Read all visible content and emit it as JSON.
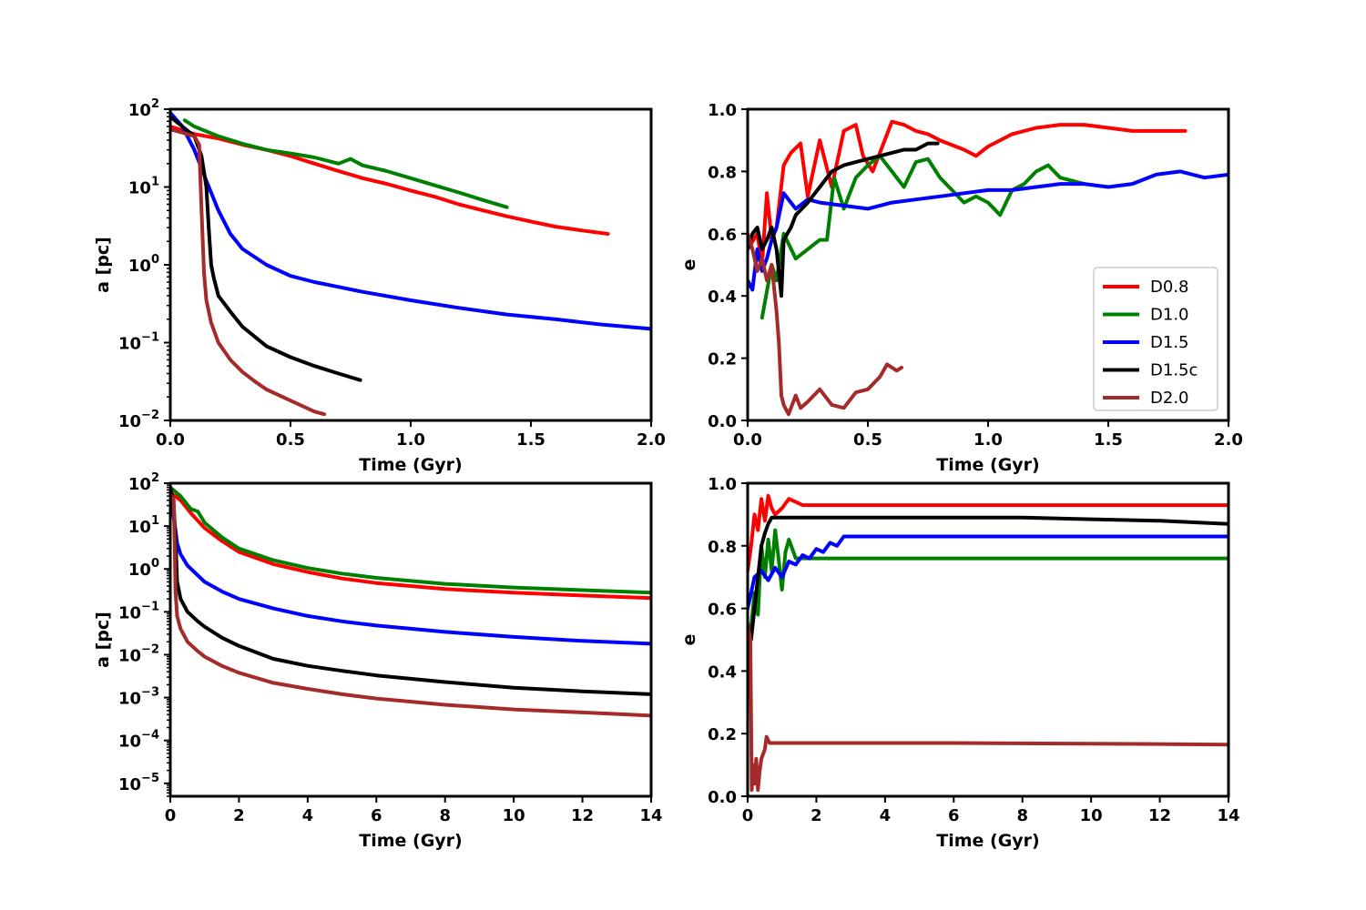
{
  "chart_data": [
    {
      "type": "line",
      "panel": "top-left",
      "xlabel": "Time (Gyr)",
      "ylabel": "a [pc]",
      "xlim": [
        0,
        2.0
      ],
      "ylim": [
        0.01,
        100
      ],
      "yscale": "log",
      "xticks": [
        "0.0",
        "0.5",
        "1.0",
        "1.5",
        "2.0"
      ],
      "yticks": [
        {
          "base": "10",
          "exp": "2"
        },
        {
          "base": "10",
          "exp": "1"
        },
        {
          "base": "10",
          "exp": "0"
        },
        {
          "base": "10",
          "exp": "−1"
        },
        {
          "base": "10",
          "exp": "−2"
        }
      ],
      "grid": false,
      "series": [
        {
          "name": "D0.8",
          "color": "#ff0000",
          "x": [
            0,
            0.1,
            0.2,
            0.3,
            0.4,
            0.5,
            0.6,
            0.7,
            0.8,
            0.9,
            1.0,
            1.1,
            1.2,
            1.3,
            1.4,
            1.5,
            1.6,
            1.7,
            1.82
          ],
          "y": [
            60,
            48,
            42,
            35,
            30,
            25,
            20,
            16,
            13,
            11,
            9,
            7.5,
            6,
            5,
            4.2,
            3.6,
            3.1,
            2.8,
            2.5
          ]
        },
        {
          "name": "D1.0",
          "color": "#008000",
          "x": [
            0.06,
            0.1,
            0.2,
            0.3,
            0.4,
            0.5,
            0.6,
            0.7,
            0.75,
            0.8,
            0.9,
            1.0,
            1.1,
            1.2,
            1.3,
            1.4
          ],
          "y": [
            72,
            60,
            45,
            36,
            30,
            27,
            24,
            20,
            23,
            19,
            16,
            13,
            10.5,
            8.5,
            6.8,
            5.5
          ]
        },
        {
          "name": "D1.5",
          "color": "#0000ff",
          "x": [
            0,
            0.05,
            0.1,
            0.15,
            0.2,
            0.25,
            0.3,
            0.4,
            0.5,
            0.6,
            0.7,
            0.8,
            1.0,
            1.2,
            1.4,
            1.6,
            1.8,
            2.0
          ],
          "y": [
            90,
            60,
            30,
            12,
            5,
            2.5,
            1.6,
            1.0,
            0.72,
            0.6,
            0.52,
            0.45,
            0.35,
            0.28,
            0.23,
            0.2,
            0.17,
            0.15
          ]
        },
        {
          "name": "D1.5c",
          "color": "#000000",
          "x": [
            0,
            0.05,
            0.1,
            0.13,
            0.15,
            0.16,
            0.17,
            0.18,
            0.2,
            0.25,
            0.3,
            0.35,
            0.4,
            0.5,
            0.6,
            0.7,
            0.79
          ],
          "y": [
            80,
            60,
            45,
            25,
            10,
            3,
            1,
            0.7,
            0.4,
            0.25,
            0.16,
            0.12,
            0.09,
            0.065,
            0.05,
            0.04,
            0.033
          ]
        },
        {
          "name": "D2.0",
          "color": "#a52a2a",
          "x": [
            0,
            0.05,
            0.1,
            0.12,
            0.13,
            0.14,
            0.15,
            0.17,
            0.2,
            0.25,
            0.3,
            0.35,
            0.4,
            0.5,
            0.6,
            0.64
          ],
          "y": [
            55,
            50,
            45,
            35,
            5,
            0.8,
            0.35,
            0.18,
            0.1,
            0.06,
            0.042,
            0.032,
            0.025,
            0.018,
            0.013,
            0.012
          ]
        }
      ]
    },
    {
      "type": "line",
      "panel": "top-right",
      "xlabel": "Time (Gyr)",
      "ylabel": "e",
      "xlim": [
        0,
        2.0
      ],
      "ylim": [
        0,
        1.0
      ],
      "xticks": [
        "0.0",
        "0.5",
        "1.0",
        "1.5",
        "2.0"
      ],
      "yticks": [
        "0.0",
        "0.2",
        "0.4",
        "0.6",
        "0.8",
        "1.0"
      ],
      "grid": false,
      "legend": {
        "position": "lower-right",
        "entries": [
          "D0.8",
          "D1.0",
          "D1.5",
          "D1.5c",
          "D2.0"
        ]
      },
      "series": [
        {
          "name": "D0.8",
          "color": "#ff0000",
          "x": [
            0,
            0.04,
            0.06,
            0.08,
            0.1,
            0.12,
            0.15,
            0.18,
            0.22,
            0.25,
            0.3,
            0.35,
            0.4,
            0.45,
            0.48,
            0.52,
            0.6,
            0.65,
            0.7,
            0.75,
            0.8,
            0.9,
            0.95,
            1.0,
            1.1,
            1.2,
            1.3,
            1.4,
            1.5,
            1.6,
            1.7,
            1.82
          ],
          "y": [
            0.55,
            0.6,
            0.5,
            0.73,
            0.58,
            0.62,
            0.82,
            0.86,
            0.89,
            0.72,
            0.9,
            0.75,
            0.93,
            0.95,
            0.85,
            0.8,
            0.96,
            0.95,
            0.93,
            0.92,
            0.9,
            0.87,
            0.85,
            0.88,
            0.92,
            0.94,
            0.95,
            0.95,
            0.94,
            0.93,
            0.93,
            0.93
          ]
        },
        {
          "name": "D1.0",
          "color": "#008000",
          "x": [
            0.06,
            0.1,
            0.12,
            0.15,
            0.2,
            0.25,
            0.3,
            0.33,
            0.36,
            0.4,
            0.45,
            0.5,
            0.55,
            0.6,
            0.65,
            0.7,
            0.75,
            0.8,
            0.85,
            0.9,
            0.95,
            1.0,
            1.05,
            1.1,
            1.15,
            1.2,
            1.25,
            1.3,
            1.35,
            1.4
          ],
          "y": [
            0.33,
            0.5,
            0.45,
            0.6,
            0.52,
            0.55,
            0.58,
            0.58,
            0.78,
            0.68,
            0.78,
            0.82,
            0.85,
            0.8,
            0.75,
            0.83,
            0.84,
            0.78,
            0.74,
            0.7,
            0.72,
            0.7,
            0.66,
            0.74,
            0.76,
            0.8,
            0.82,
            0.78,
            0.77,
            0.76
          ]
        },
        {
          "name": "D1.5",
          "color": "#0000ff",
          "x": [
            0,
            0.02,
            0.04,
            0.06,
            0.08,
            0.1,
            0.12,
            0.15,
            0.18,
            0.2,
            0.25,
            0.3,
            0.4,
            0.5,
            0.6,
            0.7,
            0.8,
            0.9,
            1.0,
            1.1,
            1.2,
            1.3,
            1.4,
            1.5,
            1.6,
            1.7,
            1.8,
            1.9,
            2.0
          ],
          "y": [
            0.45,
            0.42,
            0.55,
            0.48,
            0.52,
            0.58,
            0.62,
            0.73,
            0.7,
            0.68,
            0.71,
            0.7,
            0.69,
            0.68,
            0.7,
            0.71,
            0.72,
            0.73,
            0.74,
            0.74,
            0.75,
            0.76,
            0.76,
            0.75,
            0.76,
            0.79,
            0.8,
            0.78,
            0.79
          ]
        },
        {
          "name": "D1.5c",
          "color": "#000000",
          "x": [
            0,
            0.02,
            0.04,
            0.06,
            0.08,
            0.1,
            0.12,
            0.14,
            0.15,
            0.18,
            0.2,
            0.25,
            0.3,
            0.35,
            0.4,
            0.45,
            0.5,
            0.55,
            0.6,
            0.65,
            0.7,
            0.75,
            0.79
          ],
          "y": [
            0.55,
            0.6,
            0.62,
            0.55,
            0.58,
            0.62,
            0.55,
            0.4,
            0.58,
            0.62,
            0.66,
            0.7,
            0.75,
            0.8,
            0.82,
            0.83,
            0.84,
            0.85,
            0.86,
            0.87,
            0.87,
            0.89,
            0.89
          ]
        },
        {
          "name": "D2.0",
          "color": "#a52a2a",
          "x": [
            0,
            0.02,
            0.04,
            0.06,
            0.08,
            0.1,
            0.12,
            0.13,
            0.14,
            0.15,
            0.17,
            0.2,
            0.22,
            0.25,
            0.3,
            0.35,
            0.4,
            0.45,
            0.5,
            0.55,
            0.58,
            0.62,
            0.64
          ],
          "y": [
            0.6,
            0.55,
            0.48,
            0.52,
            0.45,
            0.5,
            0.35,
            0.25,
            0.08,
            0.05,
            0.02,
            0.08,
            0.04,
            0.06,
            0.1,
            0.05,
            0.04,
            0.09,
            0.1,
            0.14,
            0.18,
            0.16,
            0.17
          ]
        }
      ]
    },
    {
      "type": "line",
      "panel": "bottom-left",
      "xlabel": "Time (Gyr)",
      "ylabel": "a [pc]",
      "xlim": [
        0,
        14
      ],
      "ylim": [
        5e-06,
        100
      ],
      "yscale": "log",
      "xticks": [
        "0",
        "2",
        "4",
        "6",
        "8",
        "10",
        "12",
        "14"
      ],
      "yticks": [
        {
          "base": "10",
          "exp": "2"
        },
        {
          "base": "10",
          "exp": "1"
        },
        {
          "base": "10",
          "exp": "0"
        },
        {
          "base": "10",
          "exp": "−1"
        },
        {
          "base": "10",
          "exp": "−2"
        },
        {
          "base": "10",
          "exp": "−3"
        },
        {
          "base": "10",
          "exp": "−4"
        },
        {
          "base": "10",
          "exp": "−5"
        }
      ],
      "grid": false,
      "series": [
        {
          "name": "D0.8",
          "color": "#ff0000",
          "x": [
            0,
            0.3,
            0.6,
            1.0,
            1.5,
            2,
            3,
            4,
            5,
            6,
            8,
            10,
            12,
            14
          ],
          "y": [
            60,
            40,
            20,
            9,
            4.5,
            2.5,
            1.3,
            0.85,
            0.6,
            0.47,
            0.34,
            0.28,
            0.24,
            0.21
          ]
        },
        {
          "name": "D1.0",
          "color": "#008000",
          "x": [
            0,
            0.3,
            0.6,
            0.8,
            1.0,
            1.5,
            2,
            3,
            4,
            5,
            6,
            8,
            10,
            12,
            14
          ],
          "y": [
            80,
            50,
            25,
            22,
            12,
            5.5,
            3,
            1.6,
            1.05,
            0.78,
            0.62,
            0.45,
            0.37,
            0.32,
            0.28
          ]
        },
        {
          "name": "D1.5",
          "color": "#0000ff",
          "x": [
            0,
            0.1,
            0.15,
            0.2,
            0.3,
            0.5,
            1.0,
            1.5,
            2,
            3,
            4,
            5,
            6,
            8,
            10,
            12,
            14
          ],
          "y": [
            80,
            15,
            8,
            4,
            2.2,
            1.2,
            0.5,
            0.3,
            0.2,
            0.12,
            0.08,
            0.06,
            0.048,
            0.034,
            0.026,
            0.021,
            0.018
          ]
        },
        {
          "name": "D1.5c",
          "color": "#000000",
          "x": [
            0,
            0.1,
            0.15,
            0.2,
            0.3,
            0.5,
            0.8,
            1.0,
            1.5,
            2,
            3,
            4,
            5,
            6,
            8,
            10,
            12,
            14
          ],
          "y": [
            80,
            30,
            5,
            0.5,
            0.2,
            0.1,
            0.06,
            0.045,
            0.025,
            0.016,
            0.008,
            0.0055,
            0.0042,
            0.0033,
            0.0023,
            0.0017,
            0.0014,
            0.0012
          ]
        },
        {
          "name": "D2.0",
          "color": "#a52a2a",
          "x": [
            0,
            0.1,
            0.13,
            0.15,
            0.2,
            0.3,
            0.5,
            0.8,
            1.0,
            1.5,
            2,
            3,
            4,
            5,
            6,
            8,
            10,
            12,
            14
          ],
          "y": [
            55,
            40,
            3,
            0.3,
            0.08,
            0.04,
            0.02,
            0.012,
            0.009,
            0.0055,
            0.0038,
            0.0022,
            0.0016,
            0.0012,
            0.00095,
            0.00068,
            0.00053,
            0.00045,
            0.00038
          ]
        }
      ]
    },
    {
      "type": "line",
      "panel": "bottom-right",
      "xlabel": "Time (Gyr)",
      "ylabel": "e",
      "xlim": [
        0,
        14
      ],
      "ylim": [
        0,
        1.0
      ],
      "xticks": [
        "0",
        "2",
        "4",
        "6",
        "8",
        "10",
        "12",
        "14"
      ],
      "yticks": [
        "0.0",
        "0.2",
        "0.4",
        "0.6",
        "0.8",
        "1.0"
      ],
      "grid": false,
      "series": [
        {
          "name": "D0.8",
          "color": "#ff0000",
          "x": [
            0,
            0.1,
            0.2,
            0.3,
            0.4,
            0.5,
            0.6,
            0.7,
            0.8,
            1.0,
            1.2,
            1.4,
            1.6,
            1.82,
            4,
            8,
            12,
            14
          ],
          "y": [
            0.72,
            0.8,
            0.9,
            0.85,
            0.95,
            0.88,
            0.96,
            0.92,
            0.9,
            0.92,
            0.95,
            0.94,
            0.93,
            0.93,
            0.93,
            0.93,
            0.93,
            0.93
          ]
        },
        {
          "name": "D1.0",
          "color": "#008000",
          "x": [
            0.06,
            0.2,
            0.3,
            0.4,
            0.5,
            0.6,
            0.7,
            0.8,
            0.9,
            1.0,
            1.1,
            1.2,
            1.4,
            2,
            6,
            10,
            14
          ],
          "y": [
            0.5,
            0.65,
            0.58,
            0.8,
            0.7,
            0.82,
            0.72,
            0.85,
            0.76,
            0.66,
            0.78,
            0.82,
            0.76,
            0.76,
            0.76,
            0.76,
            0.76
          ]
        },
        {
          "name": "D1.5",
          "color": "#0000ff",
          "x": [
            0,
            0.1,
            0.2,
            0.4,
            0.6,
            0.8,
            1.0,
            1.2,
            1.4,
            1.6,
            1.8,
            2.0,
            2.2,
            2.4,
            2.6,
            2.8,
            4,
            8,
            12,
            14
          ],
          "y": [
            0.6,
            0.65,
            0.7,
            0.72,
            0.69,
            0.73,
            0.7,
            0.75,
            0.74,
            0.77,
            0.76,
            0.79,
            0.78,
            0.81,
            0.8,
            0.83,
            0.83,
            0.83,
            0.83,
            0.83
          ]
        },
        {
          "name": "D1.5c",
          "color": "#000000",
          "x": [
            0,
            0.1,
            0.2,
            0.3,
            0.4,
            0.5,
            0.6,
            0.7,
            1.0,
            2,
            4,
            6,
            8,
            10,
            12,
            14
          ],
          "y": [
            0.55,
            0.5,
            0.6,
            0.7,
            0.8,
            0.84,
            0.87,
            0.89,
            0.89,
            0.89,
            0.89,
            0.89,
            0.89,
            0.885,
            0.88,
            0.87
          ]
        },
        {
          "name": "D2.0",
          "color": "#a52a2a",
          "x": [
            0,
            0.08,
            0.1,
            0.12,
            0.15,
            0.2,
            0.25,
            0.3,
            0.35,
            0.4,
            0.5,
            0.55,
            0.64,
            2,
            6,
            10,
            14
          ],
          "y": [
            0.55,
            0.5,
            0.25,
            0.02,
            0.1,
            0.04,
            0.12,
            0.02,
            0.08,
            0.12,
            0.15,
            0.19,
            0.17,
            0.17,
            0.17,
            0.168,
            0.165
          ]
        }
      ]
    }
  ]
}
